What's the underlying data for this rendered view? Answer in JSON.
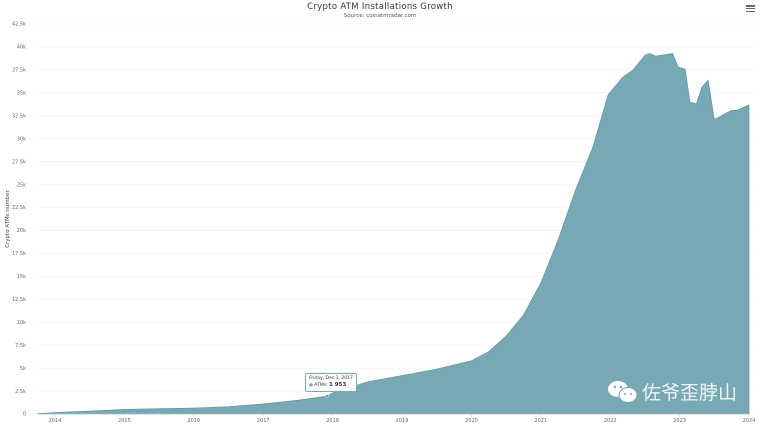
{
  "chart_data": {
    "type": "area",
    "title": "Crypto ATM Installations Growth",
    "subtitle": "Source: coinatmradar.com",
    "ylabel": "Crypto ATMs number",
    "xlabel": "",
    "ylim": [
      0,
      42500
    ],
    "xlim": [
      2013.75,
      2024.0
    ],
    "grid": true,
    "legend": "none",
    "color": "#77a9b4",
    "y_ticks": [
      "0",
      "2.5k",
      "5k",
      "7.5k",
      "10k",
      "12.5k",
      "15k",
      "17.5k",
      "20k",
      "22.5k",
      "25k",
      "27.5k",
      "30k",
      "32.5k",
      "35k",
      "37.5k",
      "40k",
      "42.5k"
    ],
    "x_ticks": [
      "2014",
      "2015",
      "2016",
      "2017",
      "2018",
      "2019",
      "2020",
      "2021",
      "2022",
      "2023",
      "2024"
    ],
    "series": [
      {
        "x": [
          2013.75,
          2014.0,
          2014.5,
          2015.0,
          2015.5,
          2016.0,
          2016.5,
          2017.0,
          2017.5,
          2017.92,
          2018.0,
          2018.5,
          2019.0,
          2019.5,
          2020.0,
          2020.25,
          2020.5,
          2020.75,
          2021.0,
          2021.25,
          2021.5,
          2021.75,
          2021.97,
          2022.18,
          2022.33,
          2022.5,
          2022.57,
          2022.66,
          2022.9,
          2022.98,
          2023.08,
          2023.15,
          2023.24,
          2023.32,
          2023.41,
          2023.5,
          2023.55,
          2023.75,
          2023.83,
          2024.0
        ],
        "y": [
          50,
          150,
          320,
          500,
          580,
          650,
          800,
          1100,
          1500,
          1953,
          2300,
          3500,
          4200,
          4900,
          5800,
          6800,
          8500,
          10800,
          14300,
          19000,
          24400,
          29100,
          34800,
          36700,
          37500,
          39100,
          39300,
          39000,
          39300,
          37800,
          37600,
          34000,
          33800,
          35600,
          36400,
          32100,
          32300,
          33100,
          33100,
          33700
        ]
      }
    ],
    "tooltip": {
      "date": "Friday, Dec 1, 2017",
      "series": "ATMs:",
      "value": "1 953"
    }
  },
  "menu_icon": "hamburger-icon",
  "watermark": "佐爷歪脖山"
}
